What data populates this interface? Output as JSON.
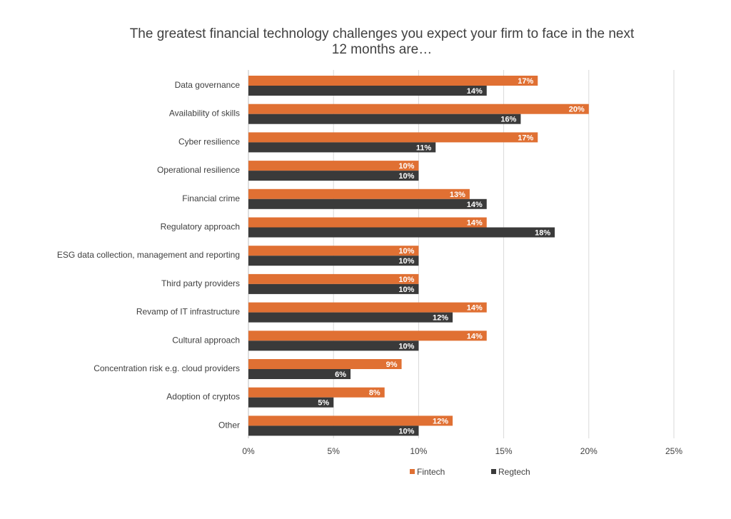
{
  "chart_data": {
    "type": "bar",
    "orientation": "horizontal",
    "title_line1": "The greatest financial technology challenges you expect your firm to face in the next",
    "title_line2": "12 months are…",
    "categories": [
      "Data governance",
      "Availability of skills",
      "Cyber resilience",
      "Operational resilience",
      "Financial crime",
      "Regulatory approach",
      "ESG data collection, management and reporting",
      "Third party providers",
      "Revamp of IT infrastructure",
      "Cultural approach",
      "Concentration risk e.g. cloud providers",
      "Adoption of cryptos",
      "Other"
    ],
    "series": [
      {
        "name": "Fintech",
        "color": "#e07033",
        "values": [
          17,
          20,
          17,
          10,
          13,
          14,
          10,
          10,
          14,
          14,
          9,
          8,
          12
        ]
      },
      {
        "name": "Regtech",
        "color": "#3a3a3a",
        "values": [
          14,
          16,
          11,
          10,
          14,
          18,
          10,
          10,
          12,
          10,
          6,
          5,
          10
        ]
      }
    ],
    "xlim": [
      0,
      25
    ],
    "xticks": [
      "0%",
      "5%",
      "10%",
      "15%",
      "20%",
      "25%"
    ],
    "value_suffix": "%",
    "grid": true,
    "legend_position": "bottom"
  }
}
